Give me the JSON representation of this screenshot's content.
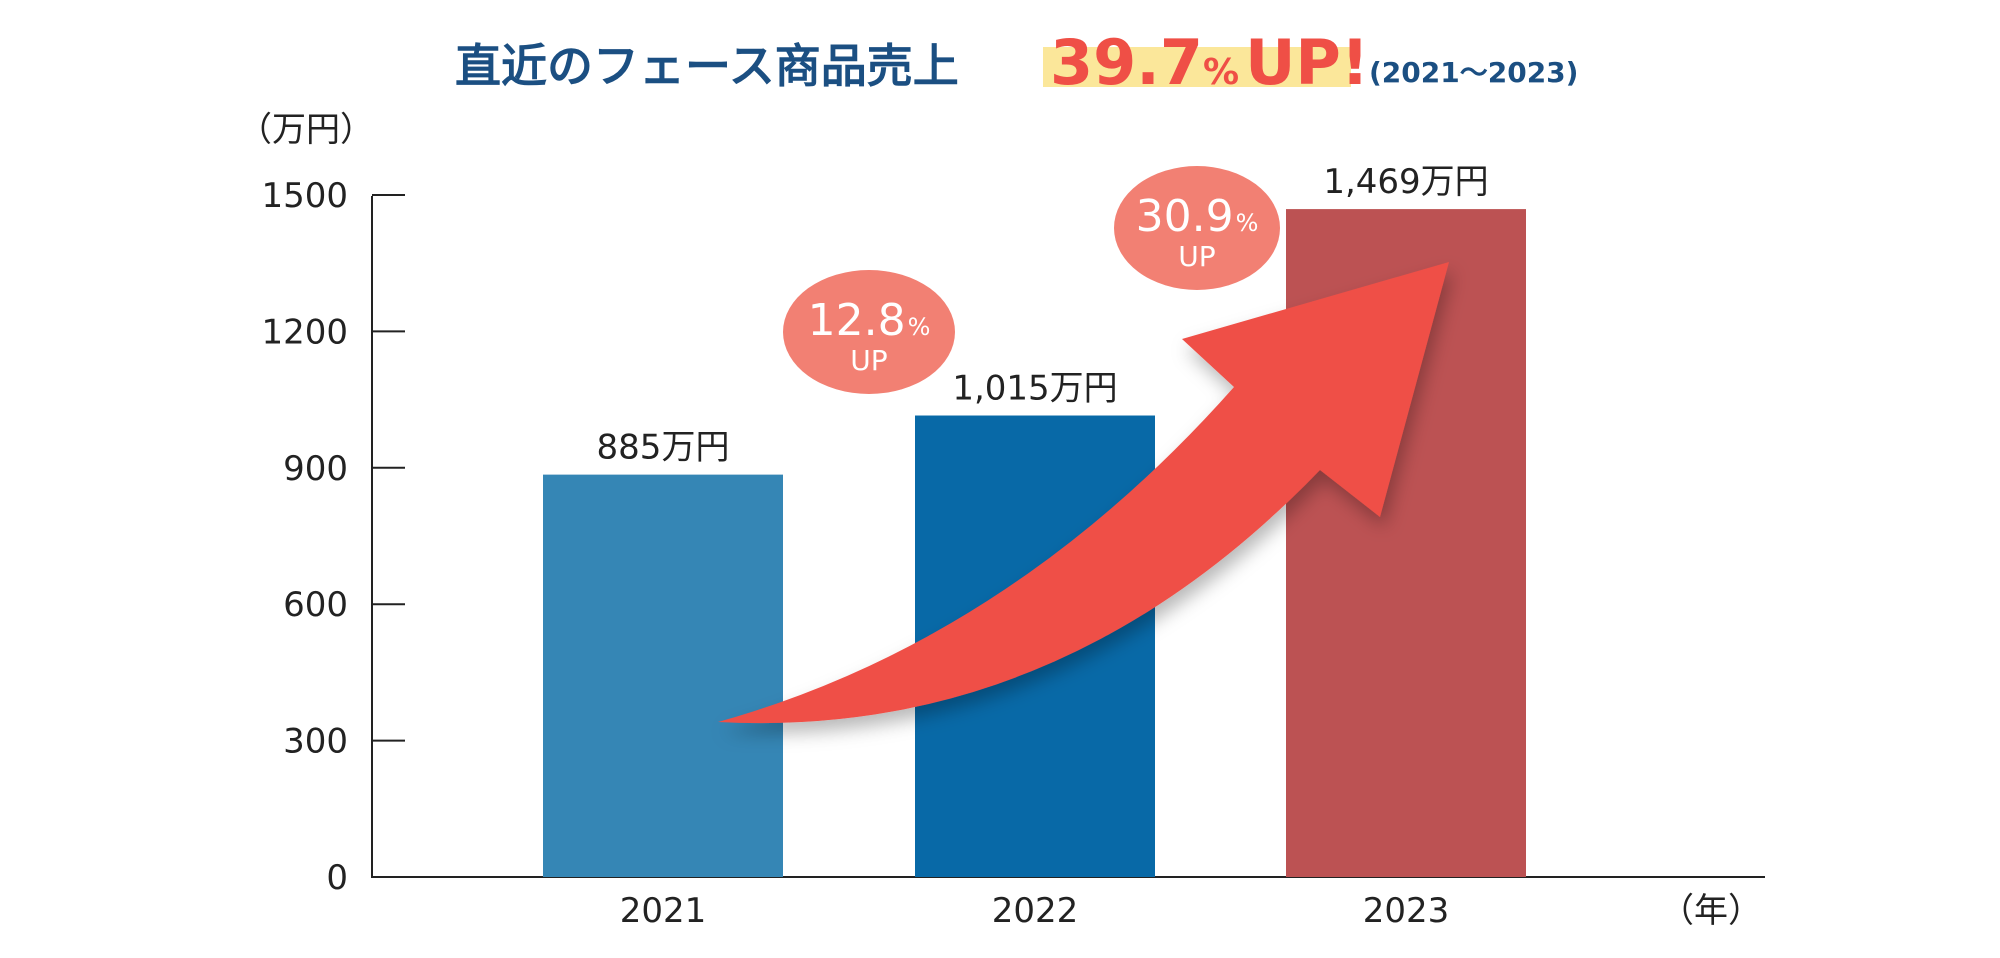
{
  "header": {
    "title": "直近のフェース商品売上",
    "highlight_number": "39.7",
    "highlight_percent": "%",
    "highlight_up": "UP!",
    "period": "(2021〜2023)"
  },
  "badges": [
    {
      "value": "12.8",
      "percent": "%",
      "up": "UP"
    },
    {
      "value": "30.9",
      "percent": "%",
      "up": "UP"
    }
  ],
  "colors": {
    "title": "#1b4f82",
    "accent": "#ef4f46",
    "highlight_bg": "#fbe79a",
    "badge": "#f28073",
    "axis": "#222222",
    "bar_2021": "#3586b5",
    "bar_2022": "#0869a7",
    "bar_2023": "#bc5253"
  },
  "chart_data": {
    "type": "bar",
    "title": "直近のフェース商品売上",
    "y_unit_label": "（万円）",
    "x_unit_label": "（年）",
    "categories": [
      "2021",
      "2022",
      "2023"
    ],
    "values": [
      885,
      1015,
      1469
    ],
    "value_labels": [
      "885万円",
      "1,015万円",
      "1,469万円"
    ],
    "ylim": [
      0,
      1500
    ],
    "yticks": [
      "0",
      "300",
      "600",
      "900",
      "1200",
      "1500"
    ],
    "grid": false,
    "legend": "none"
  }
}
